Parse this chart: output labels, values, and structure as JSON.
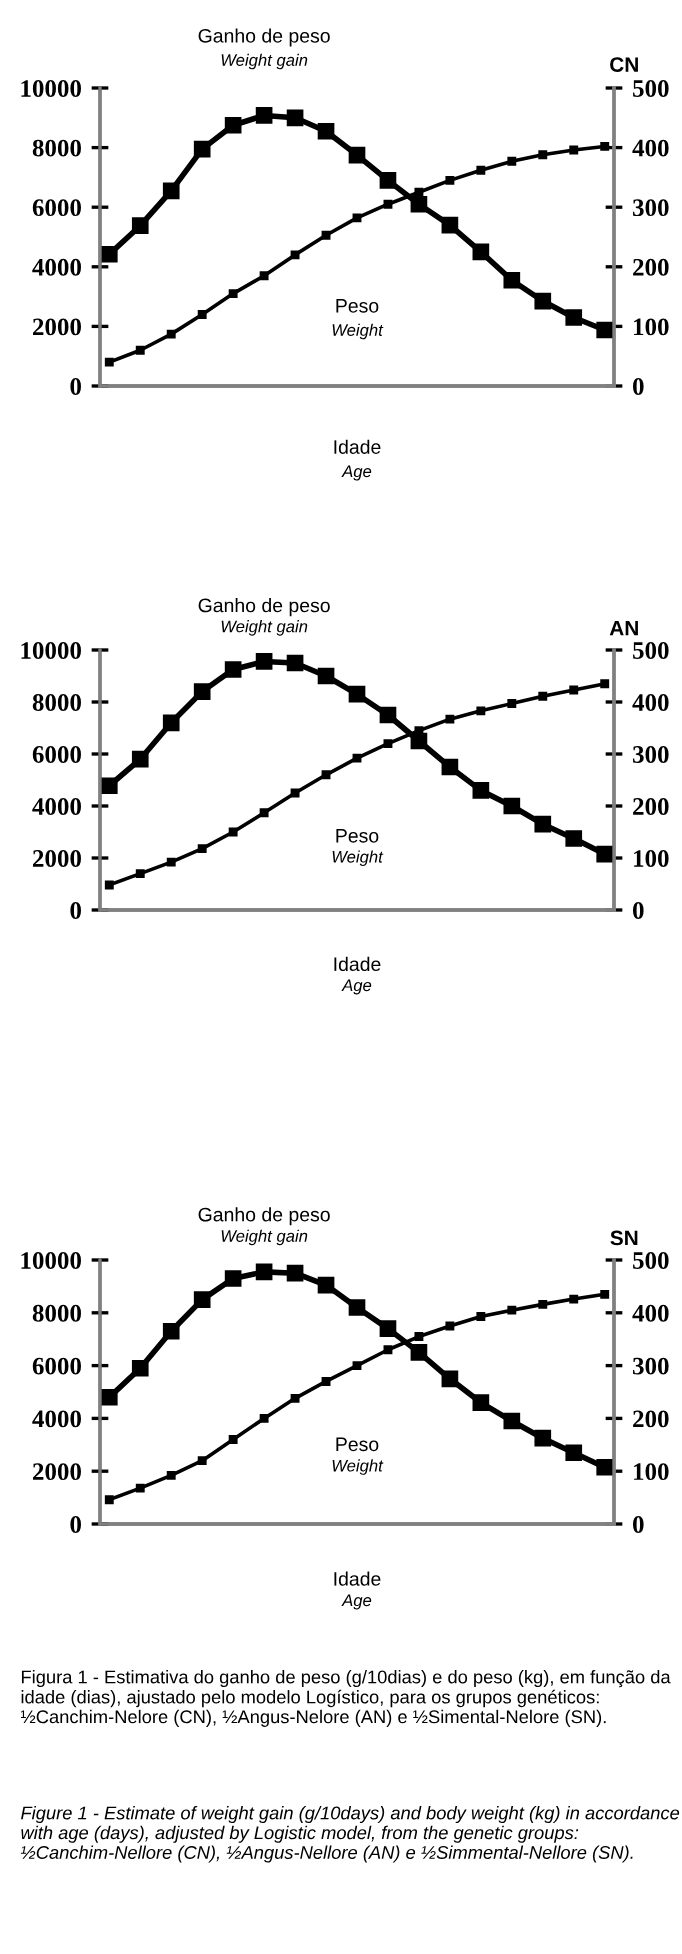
{
  "chart_data": [
    {
      "type": "line",
      "y2label": "CN",
      "xlabel": "Idade\nAge",
      "categories": [
        null,
        null,
        null,
        null,
        null,
        null,
        null,
        null,
        null,
        null,
        null,
        null,
        null,
        null,
        null,
        null,
        null
      ],
      "ylim": [
        0,
        10000
      ],
      "yticks": [
        0,
        2000,
        4000,
        6000,
        8000,
        10000
      ],
      "y2lim": [
        0,
        500
      ],
      "y2ticks": [
        0,
        100,
        200,
        300,
        400,
        500
      ],
      "grid": false,
      "legend": false,
      "line_style": "solid",
      "series": [
        {
          "name": "Ganho de peso\nWeight gain",
          "color": "#000000",
          "marker": "square",
          "axis": "y",
          "values": [
            4420,
            5380,
            6550,
            7950,
            8750,
            9080,
            9000,
            8550,
            7750,
            6900,
            6100,
            5400,
            4500,
            3550,
            2850,
            2300,
            1880
          ]
        },
        {
          "name": "Peso\nWeight",
          "color": "#000000",
          "marker": "square",
          "axis": "y2",
          "values": [
            40,
            60,
            87,
            120,
            155,
            185,
            220,
            253,
            282,
            305,
            325,
            345,
            362,
            377,
            388,
            396,
            402
          ]
        }
      ]
    },
    {
      "type": "line",
      "y2label": "AN",
      "xlabel": "Idade\nAge",
      "categories": [
        null,
        null,
        null,
        null,
        null,
        null,
        null,
        null,
        null,
        null,
        null,
        null,
        null,
        null,
        null,
        null,
        null
      ],
      "ylim": [
        0,
        10000
      ],
      "yticks": [
        0,
        2000,
        4000,
        6000,
        8000,
        10000
      ],
      "y2lim": [
        0,
        500
      ],
      "y2ticks": [
        0,
        100,
        200,
        300,
        400,
        500
      ],
      "grid": false,
      "legend": false,
      "line_style": "solid",
      "series": [
        {
          "name": "Ganho de peso\nWeight gain",
          "color": "#000000",
          "marker": "square",
          "axis": "y",
          "values": [
            4780,
            5800,
            7200,
            8400,
            9250,
            9560,
            9500,
            9000,
            8300,
            7500,
            6500,
            5500,
            4600,
            4000,
            3300,
            2750,
            2150
          ]
        },
        {
          "name": "Peso\nWeight",
          "color": "#000000",
          "marker": "square",
          "axis": "y2",
          "values": [
            48,
            70,
            92,
            118,
            150,
            187,
            225,
            260,
            292,
            320,
            345,
            367,
            383,
            397,
            411,
            423,
            435
          ]
        }
      ]
    },
    {
      "type": "line",
      "y2label": "SN",
      "xlabel": "Idade\nAge",
      "categories": [
        null,
        null,
        null,
        null,
        null,
        null,
        null,
        null,
        null,
        null,
        null,
        null,
        null,
        null,
        null,
        null,
        null
      ],
      "ylim": [
        0,
        10000
      ],
      "yticks": [
        0,
        2000,
        4000,
        6000,
        8000,
        10000
      ],
      "y2lim": [
        0,
        500
      ],
      "y2ticks": [
        0,
        100,
        200,
        300,
        400,
        500
      ],
      "grid": false,
      "legend": false,
      "line_style": "solid",
      "series": [
        {
          "name": "Ganho de peso\nWeight gain",
          "color": "#000000",
          "marker": "square",
          "axis": "y",
          "values": [
            4800,
            5900,
            7300,
            8500,
            9300,
            9550,
            9500,
            9050,
            8200,
            7400,
            6500,
            5500,
            4600,
            3900,
            3250,
            2700,
            2150
          ]
        },
        {
          "name": "Peso\nWeight",
          "color": "#000000",
          "marker": "square",
          "axis": "y2",
          "values": [
            46,
            68,
            92,
            120,
            160,
            200,
            238,
            270,
            300,
            330,
            355,
            375,
            393,
            405,
            416,
            426,
            435
          ]
        }
      ],
      "annotations": [
        "Figura 1 - Estimativa do ganho de peso (g/10dias) e do peso (kg), em função da idade (dias), ajustado pelo modelo Logístico, para os grupos genéticos: ½Canchim-Nelore (CN), ½Angus-Nelore (AN) e ½Simental-Nelore (SN).",
        "Figure 1 - Estimate of weight gain (g/10days) and body weight (kg) in accordance with age (days), adjusted by Logistic model, from the genetic groups: ½Canchim-Nellore (CN), ½Angus-Nellore (AN) e ½Simmental-Nellore (SN)."
      ]
    }
  ]
}
